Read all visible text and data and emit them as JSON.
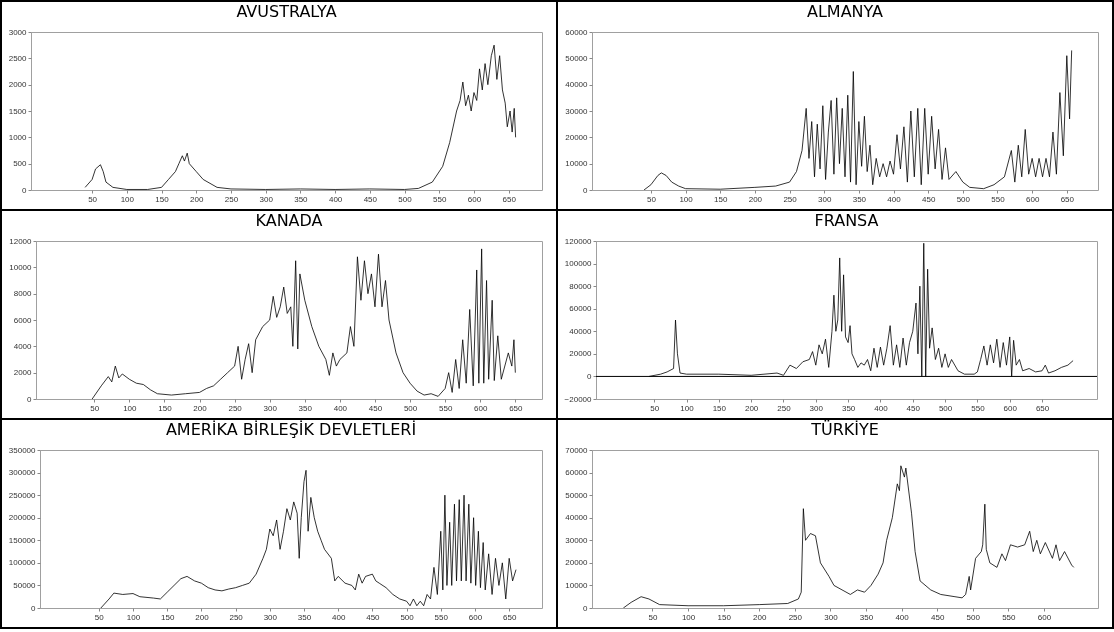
{
  "chart_data": [
    {
      "type": "line",
      "title": "AVUSTRALYA",
      "grid": false,
      "xlim": [
        -38,
        698
      ],
      "xticks": [
        50,
        100,
        150,
        200,
        250,
        300,
        350,
        400,
        450,
        500,
        550,
        600,
        650
      ],
      "ylim": [
        0,
        3000
      ],
      "yticks": [
        0,
        500,
        1000,
        1500,
        2000,
        2500,
        3000
      ],
      "x": [
        40,
        50,
        55,
        62,
        66,
        70,
        80,
        100,
        130,
        150,
        160,
        170,
        175,
        180,
        183,
        187,
        190,
        200,
        210,
        230,
        250,
        300,
        350,
        400,
        450,
        500,
        520,
        540,
        555,
        565,
        575,
        580,
        584,
        588,
        592,
        596,
        600,
        604,
        608,
        612,
        616,
        620,
        625,
        629,
        633,
        637,
        641,
        645,
        648,
        652,
        655,
        658,
        660
      ],
      "series": [
        {
          "color": "#000000",
          "values": [
            50,
            200,
            400,
            480,
            350,
            150,
            50,
            10,
            10,
            50,
            200,
            350,
            500,
            650,
            550,
            700,
            500,
            350,
            200,
            50,
            20,
            10,
            20,
            10,
            20,
            10,
            30,
            150,
            450,
            900,
            1500,
            1700,
            2050,
            1600,
            1800,
            1500,
            1850,
            1700,
            2300,
            1900,
            2400,
            2000,
            2550,
            2750,
            2100,
            2550,
            1900,
            1650,
            1200,
            1500,
            1100,
            1550,
            1000
          ]
        }
      ]
    },
    {
      "type": "line",
      "title": "ALMANYA",
      "grid": false,
      "xlim": [
        -35,
        695
      ],
      "xticks": [
        50,
        100,
        150,
        200,
        250,
        300,
        350,
        400,
        450,
        500,
        550,
        600,
        650
      ],
      "ylim": [
        0,
        60000
      ],
      "yticks": [
        0,
        10000,
        20000,
        30000,
        40000,
        50000,
        60000
      ],
      "x": [
        40,
        50,
        60,
        65,
        72,
        80,
        90,
        100,
        150,
        200,
        230,
        250,
        260,
        268,
        274,
        278,
        282,
        286,
        290,
        294,
        298,
        302,
        306,
        310,
        314,
        318,
        322,
        326,
        330,
        334,
        338,
        342,
        346,
        350,
        354,
        358,
        362,
        366,
        370,
        375,
        380,
        385,
        390,
        395,
        400,
        405,
        410,
        415,
        420,
        425,
        430,
        435,
        440,
        445,
        450,
        455,
        460,
        465,
        470,
        475,
        480,
        490,
        500,
        510,
        530,
        545,
        560,
        570,
        575,
        580,
        585,
        590,
        595,
        600,
        605,
        610,
        615,
        620,
        625,
        630,
        635,
        640,
        645,
        650,
        654,
        657
      ],
      "series": [
        {
          "color": "#000000",
          "values": [
            0,
            2000,
            5500,
            6500,
            5500,
            3000,
            1500,
            500,
            300,
            1000,
            1500,
            3000,
            7000,
            15000,
            31000,
            12000,
            26000,
            5000,
            25000,
            8000,
            32000,
            4000,
            22000,
            34000,
            6000,
            35000,
            10000,
            31000,
            5000,
            36000,
            3000,
            45000,
            2000,
            26000,
            9000,
            28000,
            7000,
            17000,
            2000,
            12000,
            5000,
            10000,
            5000,
            11000,
            6000,
            21000,
            8000,
            24000,
            3000,
            30000,
            5000,
            31000,
            2000,
            31000,
            6000,
            28000,
            8000,
            23000,
            4000,
            16000,
            4000,
            7000,
            3000,
            1000,
            500,
            2000,
            5000,
            15000,
            3000,
            17000,
            5000,
            23000,
            6000,
            12000,
            5000,
            12000,
            5000,
            12000,
            5000,
            22000,
            6000,
            37000,
            13000,
            51000,
            27000,
            53000
          ]
        }
      ]
    },
    {
      "type": "line",
      "title": "KANADA",
      "grid": false,
      "xlim": [
        -33,
        688
      ],
      "xticks": [
        50,
        100,
        150,
        200,
        250,
        300,
        350,
        400,
        450,
        500,
        550,
        600,
        650
      ],
      "ylim": [
        0,
        12000
      ],
      "yticks": [
        0,
        2000,
        4000,
        6000,
        8000,
        10000,
        12000
      ],
      "x": [
        47,
        60,
        70,
        75,
        80,
        85,
        90,
        100,
        110,
        120,
        130,
        140,
        160,
        180,
        200,
        210,
        220,
        230,
        240,
        250,
        255,
        260,
        265,
        270,
        275,
        280,
        290,
        300,
        305,
        310,
        315,
        320,
        325,
        330,
        333,
        337,
        340,
        343,
        350,
        360,
        370,
        380,
        385,
        390,
        395,
        400,
        410,
        415,
        420,
        425,
        430,
        435,
        440,
        445,
        450,
        455,
        460,
        465,
        470,
        480,
        490,
        500,
        510,
        520,
        530,
        540,
        550,
        555,
        560,
        565,
        570,
        575,
        580,
        585,
        590,
        595,
        598,
        602,
        605,
        609,
        612,
        617,
        620,
        625,
        630,
        640,
        645,
        648,
        650
      ],
      "series": [
        {
          "color": "#000000",
          "values": [
            0,
            1000,
            1700,
            1300,
            2500,
            1600,
            1900,
            1500,
            1200,
            1100,
            700,
            400,
            300,
            400,
            500,
            800,
            1000,
            1500,
            2000,
            2500,
            4000,
            1500,
            3000,
            4200,
            2000,
            4500,
            5500,
            6000,
            7800,
            6200,
            7000,
            8500,
            6500,
            7000,
            4000,
            10500,
            3800,
            9500,
            7500,
            5500,
            4000,
            3000,
            1800,
            3500,
            2500,
            3000,
            3500,
            5500,
            4000,
            10800,
            7500,
            10500,
            8000,
            9500,
            7000,
            11000,
            7000,
            9000,
            6000,
            3500,
            2000,
            1200,
            600,
            300,
            400,
            200,
            800,
            2000,
            500,
            3000,
            800,
            4500,
            1200,
            6800,
            1000,
            9800,
            1200,
            11400,
            1200,
            9000,
            1500,
            7500,
            1400,
            4800,
            1500,
            3500,
            2500,
            4500,
            2000
          ]
        }
      ]
    },
    {
      "type": "line",
      "title": "FRANSA",
      "grid": false,
      "xlim": [
        -40,
        735
      ],
      "xticks": [
        50,
        100,
        150,
        200,
        250,
        300,
        350,
        400,
        450,
        500,
        550,
        600,
        650
      ],
      "ylim": [
        -20000,
        120000
      ],
      "yticks": [
        -20000,
        0,
        20000,
        40000,
        60000,
        80000,
        100000,
        120000
      ],
      "ref_lines": [
        {
          "axis": "y",
          "value": 0,
          "color": "#000000"
        }
      ],
      "x": [
        42,
        60,
        70,
        80,
        83,
        86,
        90,
        100,
        150,
        200,
        240,
        250,
        260,
        270,
        280,
        290,
        295,
        300,
        305,
        310,
        315,
        320,
        325,
        328,
        331,
        334,
        337,
        340,
        343,
        346,
        350,
        353,
        356,
        360,
        365,
        370,
        375,
        380,
        385,
        390,
        395,
        400,
        405,
        410,
        415,
        420,
        425,
        430,
        435,
        440,
        445,
        450,
        455,
        458,
        461,
        464,
        467,
        470,
        473,
        476,
        480,
        485,
        490,
        495,
        500,
        505,
        510,
        520,
        530,
        545,
        550,
        555,
        560,
        565,
        570,
        575,
        580,
        585,
        590,
        595,
        600,
        603,
        606,
        610,
        615,
        620,
        630,
        640,
        650,
        655,
        660,
        670,
        680,
        690,
        698
      ],
      "series": [
        {
          "color": "#000000",
          "values": [
            0,
            2000,
            4000,
            7000,
            50000,
            20000,
            3000,
            2000,
            2000,
            1000,
            3000,
            1000,
            10000,
            7000,
            13000,
            15000,
            22000,
            10000,
            28000,
            20000,
            33000,
            8000,
            40000,
            72000,
            40000,
            50000,
            105000,
            40000,
            90000,
            35000,
            30000,
            45000,
            20000,
            15000,
            8000,
            12000,
            10000,
            15000,
            5000,
            25000,
            8000,
            26000,
            10000,
            25000,
            45000,
            10000,
            28000,
            8000,
            34000,
            10000,
            30000,
            40000,
            65000,
            20000,
            80000,
            0,
            118000,
            0,
            95000,
            25000,
            43000,
            15000,
            25000,
            8000,
            20000,
            8000,
            15000,
            5000,
            2000,
            2000,
            4000,
            15000,
            27000,
            10000,
            28000,
            12000,
            33000,
            8000,
            30000,
            10000,
            35000,
            0,
            32000,
            10000,
            15000,
            5000,
            7000,
            4000,
            5000,
            10000,
            3000,
            5000,
            8000,
            10000,
            14000
          ]
        }
      ]
    },
    {
      "type": "line",
      "title": "AMERİKA BİRLEŞİK DEVLETLERİ",
      "grid": false,
      "xlim": [
        -36,
        698
      ],
      "xticks": [
        50,
        100,
        150,
        200,
        250,
        300,
        350,
        400,
        450,
        500,
        550,
        600,
        650
      ],
      "ylim": [
        0,
        350000
      ],
      "yticks": [
        0,
        50000,
        100000,
        150000,
        200000,
        250000,
        300000,
        350000
      ],
      "x": [
        53,
        65,
        72,
        85,
        100,
        110,
        130,
        140,
        150,
        160,
        170,
        179,
        190,
        200,
        210,
        220,
        230,
        240,
        250,
        260,
        270,
        280,
        290,
        295,
        300,
        305,
        310,
        315,
        320,
        325,
        330,
        335,
        340,
        343,
        346,
        350,
        353,
        356,
        360,
        365,
        370,
        375,
        380,
        390,
        395,
        400,
        410,
        420,
        425,
        430,
        435,
        440,
        450,
        455,
        460,
        470,
        480,
        490,
        500,
        505,
        510,
        515,
        520,
        525,
        530,
        535,
        540,
        545,
        550,
        553,
        556,
        559,
        563,
        566,
        570,
        573,
        577,
        580,
        584,
        587,
        591,
        594,
        598,
        601,
        605,
        608,
        612,
        615,
        620,
        625,
        630,
        635,
        640,
        645,
        650,
        655,
        660
      ],
      "series": [
        {
          "color": "#000000",
          "values": [
            0,
            20000,
            33000,
            30000,
            32000,
            25000,
            22000,
            20000,
            35000,
            50000,
            65000,
            70000,
            60000,
            55000,
            45000,
            40000,
            38000,
            42000,
            45000,
            50000,
            55000,
            75000,
            110000,
            130000,
            175000,
            160000,
            195000,
            130000,
            170000,
            220000,
            195000,
            235000,
            210000,
            110000,
            200000,
            280000,
            305000,
            170000,
            245000,
            200000,
            170000,
            150000,
            130000,
            110000,
            60000,
            70000,
            55000,
            50000,
            40000,
            75000,
            55000,
            70000,
            75000,
            60000,
            55000,
            45000,
            30000,
            20000,
            15000,
            5000,
            20000,
            5000,
            15000,
            5000,
            30000,
            20000,
            90000,
            30000,
            170000,
            40000,
            250000,
            50000,
            190000,
            50000,
            230000,
            60000,
            240000,
            60000,
            250000,
            60000,
            230000,
            55000,
            200000,
            50000,
            170000,
            45000,
            145000,
            40000,
            120000,
            30000,
            110000,
            50000,
            100000,
            20000,
            110000,
            60000,
            85000
          ]
        }
      ]
    },
    {
      "type": "line",
      "title": "TÜRKİYE",
      "grid": false,
      "xlim": [
        -35,
        676
      ],
      "xticks": [
        50,
        100,
        150,
        200,
        250,
        300,
        350,
        400,
        450,
        500,
        550,
        600
      ],
      "ylim": [
        0,
        70000
      ],
      "yticks": [
        0,
        10000,
        20000,
        30000,
        40000,
        50000,
        60000,
        70000
      ],
      "x": [
        9,
        20,
        34,
        45,
        60,
        100,
        150,
        200,
        240,
        255,
        259,
        262,
        265,
        272,
        279,
        286,
        298,
        305,
        328,
        338,
        348,
        357,
        367,
        374,
        379,
        387,
        394,
        397,
        399,
        404,
        406,
        414,
        419,
        426,
        441,
        455,
        475,
        485,
        490,
        495,
        497,
        504,
        512,
        514,
        517,
        519,
        524,
        534,
        541,
        546,
        553,
        563,
        573,
        580,
        585,
        590,
        595,
        602,
        612,
        617,
        622,
        629,
        639,
        642
      ],
      "series": [
        {
          "color": "#000000",
          "values": [
            0,
            2500,
            5000,
            4000,
            1500,
            1000,
            1000,
            1500,
            2000,
            4000,
            7000,
            44000,
            30000,
            33000,
            32000,
            20000,
            14000,
            10000,
            6000,
            8000,
            7000,
            10000,
            15000,
            20000,
            30000,
            40000,
            55000,
            52000,
            63000,
            58000,
            62000,
            42000,
            25000,
            12000,
            8000,
            6000,
            5000,
            4500,
            6000,
            14000,
            8000,
            22000,
            25000,
            28000,
            46000,
            26000,
            20000,
            18000,
            24000,
            21000,
            28000,
            27000,
            28000,
            34000,
            25000,
            30000,
            24000,
            29000,
            22000,
            28000,
            21000,
            25000,
            19000,
            18000
          ]
        }
      ]
    }
  ]
}
